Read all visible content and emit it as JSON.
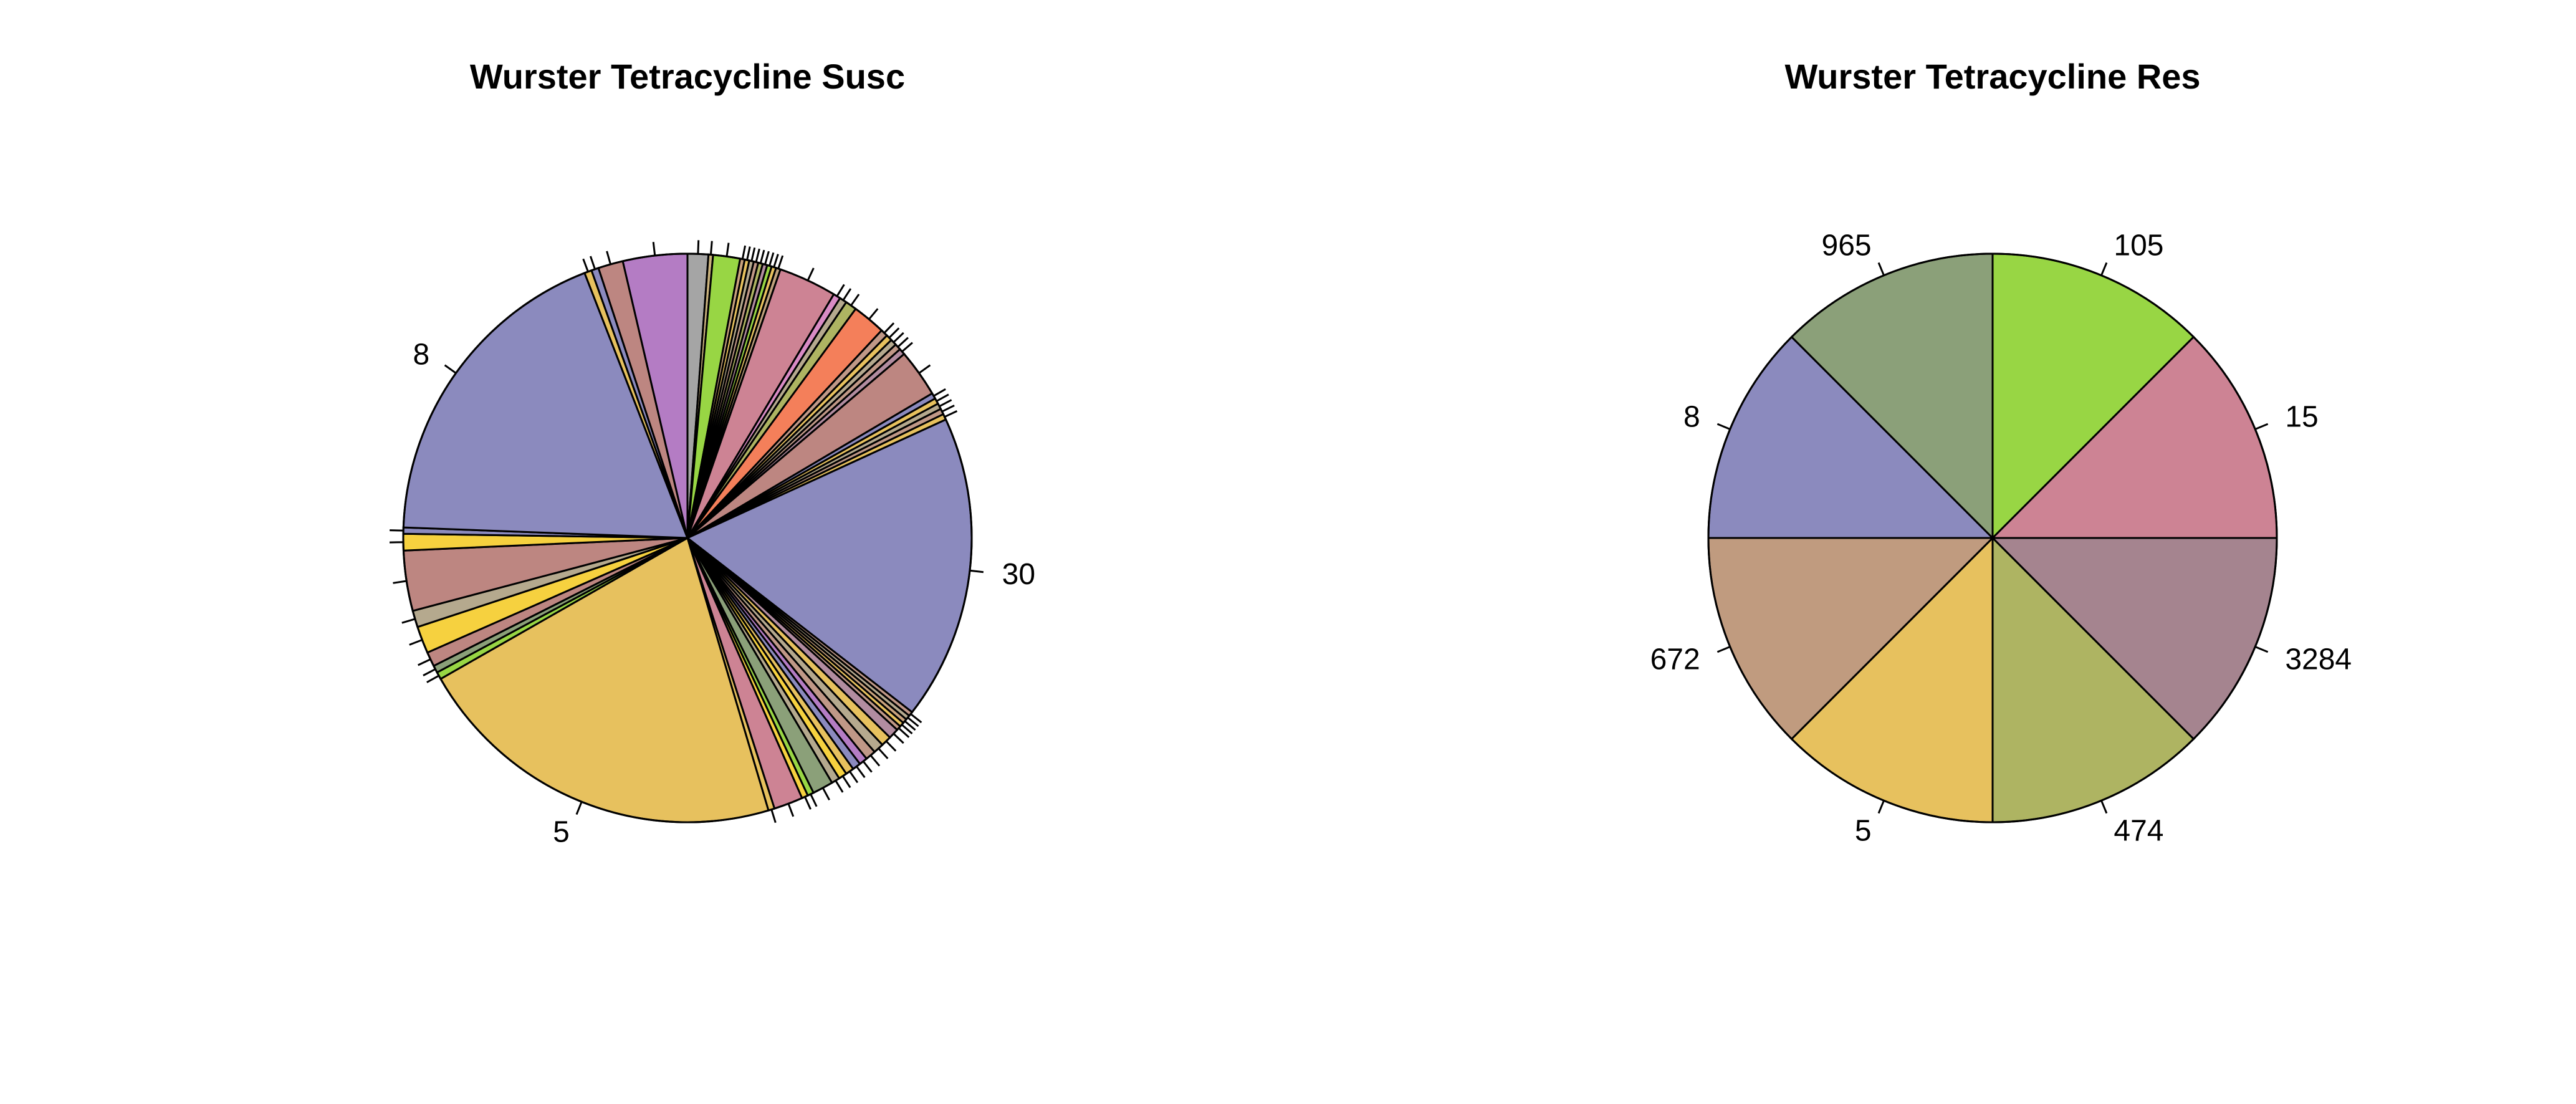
{
  "chart_data": [
    {
      "type": "pie",
      "title": "Wurster Tetracycline Susc",
      "slices": [
        {
          "label": "",
          "value": 1.0,
          "color": "#A5A5A5"
        },
        {
          "label": "",
          "value": 0.22,
          "color": "#C9B27D"
        },
        {
          "label": "",
          "value": 1.3,
          "color": "#98D644"
        },
        {
          "label": "",
          "value": 0.22,
          "color": "#C9A27D"
        },
        {
          "label": "",
          "value": 0.22,
          "color": "#E7C15E"
        },
        {
          "label": "",
          "value": 0.22,
          "color": "#B5A98E"
        },
        {
          "label": "",
          "value": 0.22,
          "color": "#C09887"
        },
        {
          "label": "",
          "value": 0.22,
          "color": "#AEB462"
        },
        {
          "label": "",
          "value": 0.22,
          "color": "#B28CA0"
        },
        {
          "label": "",
          "value": 0.22,
          "color": "#98D644"
        },
        {
          "label": "",
          "value": 0.22,
          "color": "#E7C15E"
        },
        {
          "label": "",
          "value": 0.22,
          "color": "#C0A27D"
        },
        {
          "label": "",
          "value": 2.8,
          "color": "#CD8394"
        },
        {
          "label": "",
          "value": 0.35,
          "color": "#D98BC5"
        },
        {
          "label": "",
          "value": 0.35,
          "color": "#B5A98E"
        },
        {
          "label": "",
          "value": 0.55,
          "color": "#AEB462"
        },
        {
          "label": "",
          "value": 1.6,
          "color": "#F47F5A"
        },
        {
          "label": "",
          "value": 0.35,
          "color": "#C09887"
        },
        {
          "label": "",
          "value": 0.3,
          "color": "#E7C15E"
        },
        {
          "label": "",
          "value": 0.3,
          "color": "#B5A98E"
        },
        {
          "label": "",
          "value": 0.3,
          "color": "#C09887"
        },
        {
          "label": "",
          "value": 0.3,
          "color": "#B28CA0"
        },
        {
          "label": "",
          "value": 2.3,
          "color": "#BD8681"
        },
        {
          "label": "",
          "value": 0.28,
          "color": "#8B8ABE"
        },
        {
          "label": "",
          "value": 0.28,
          "color": "#E7C15E"
        },
        {
          "label": "",
          "value": 0.28,
          "color": "#B5A98E"
        },
        {
          "label": "",
          "value": 0.28,
          "color": "#C09887"
        },
        {
          "label": "",
          "value": 0.28,
          "color": "#E7C15E"
        },
        {
          "label": "30",
          "value": 14.7,
          "color": "#8B8ABE"
        },
        {
          "label": "",
          "value": 0.22,
          "color": "#C09887"
        },
        {
          "label": "",
          "value": 0.22,
          "color": "#B5A98E"
        },
        {
          "label": "",
          "value": 0.22,
          "color": "#C9A27D"
        },
        {
          "label": "",
          "value": 0.22,
          "color": "#E7C15E"
        },
        {
          "label": "",
          "value": 0.22,
          "color": "#C09887"
        },
        {
          "label": "",
          "value": 0.5,
          "color": "#B28CA0"
        },
        {
          "label": "",
          "value": 0.5,
          "color": "#E7C15E"
        },
        {
          "label": "",
          "value": 0.5,
          "color": "#B5A98E"
        },
        {
          "label": "",
          "value": 0.5,
          "color": "#C09887"
        },
        {
          "label": "",
          "value": 0.4,
          "color": "#B47CC4"
        },
        {
          "label": "",
          "value": 0.4,
          "color": "#8B8ABE"
        },
        {
          "label": "",
          "value": 0.4,
          "color": "#E7C15E"
        },
        {
          "label": "",
          "value": 0.4,
          "color": "#F6D13F"
        },
        {
          "label": "",
          "value": 0.4,
          "color": "#B5A98E"
        },
        {
          "label": "",
          "value": 1.0,
          "color": "#8BA079"
        },
        {
          "label": "",
          "value": 0.3,
          "color": "#98D644"
        },
        {
          "label": "",
          "value": 0.3,
          "color": "#F6D13F"
        },
        {
          "label": "",
          "value": 1.4,
          "color": "#CD8394"
        },
        {
          "label": "",
          "value": 0.3,
          "color": "#E7C15E"
        },
        {
          "label": "5",
          "value": 18.1,
          "color": "#E7C15E"
        },
        {
          "label": "",
          "value": 0.35,
          "color": "#98D644"
        },
        {
          "label": "",
          "value": 0.35,
          "color": "#8BA079"
        },
        {
          "label": "",
          "value": 0.7,
          "color": "#BD8681"
        },
        {
          "label": "",
          "value": 1.3,
          "color": "#F6D13F"
        },
        {
          "label": "",
          "value": 0.8,
          "color": "#B5A98E"
        },
        {
          "label": "",
          "value": 2.9,
          "color": "#BD8681"
        },
        {
          "label": "",
          "value": 0.8,
          "color": "#F6D13F"
        },
        {
          "label": "",
          "value": 0.3,
          "color": "#8B8ABE"
        },
        {
          "label": "8",
          "value": 15.7,
          "color": "#8B8ABE"
        },
        {
          "label": "",
          "value": 0.35,
          "color": "#E7C15E"
        },
        {
          "label": "",
          "value": 0.35,
          "color": "#8B8ABE"
        },
        {
          "label": "",
          "value": 1.2,
          "color": "#BD8681"
        },
        {
          "label": "",
          "value": 3.1,
          "color": "#B47CC4"
        }
      ]
    },
    {
      "type": "pie",
      "title": "Wurster Tetracycline Res",
      "slices": [
        {
          "label": "105",
          "value": 1,
          "color": "#98D644"
        },
        {
          "label": "15",
          "value": 1,
          "color": "#CD8394"
        },
        {
          "label": "3284",
          "value": 1,
          "color": "#A5848F"
        },
        {
          "label": "474",
          "value": 1,
          "color": "#AEB462"
        },
        {
          "label": "5",
          "value": 1,
          "color": "#E7C15E"
        },
        {
          "label": "672",
          "value": 1,
          "color": "#C09B7F"
        },
        {
          "label": "8",
          "value": 1,
          "color": "#8B8ABE"
        },
        {
          "label": "965",
          "value": 1,
          "color": "#8BA079"
        }
      ]
    }
  ]
}
